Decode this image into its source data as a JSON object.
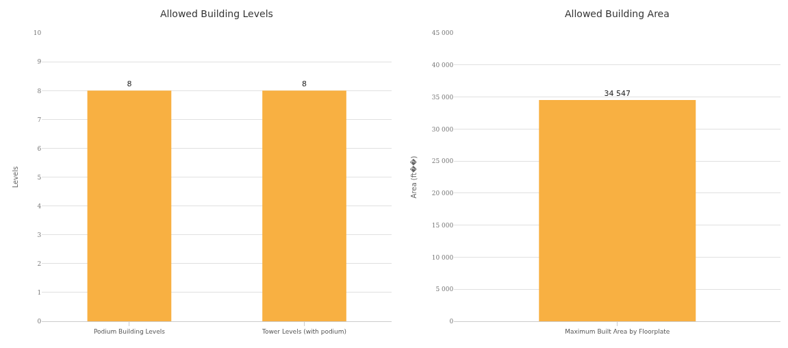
{
  "chart_data": [
    {
      "type": "bar",
      "title": "Allowed Building Levels",
      "ylabel": "Levels",
      "categories": [
        "Podium Building Levels",
        "Tower Levels (with podium)"
      ],
      "values": [
        8,
        8
      ],
      "color": "#f8b042",
      "ylim": [
        0,
        10
      ],
      "yticks": [
        0,
        1,
        2,
        3,
        4,
        5,
        6,
        7,
        8,
        9,
        10
      ],
      "grid": "y",
      "data_labels": true
    },
    {
      "type": "bar",
      "title": "Allowed Building Area",
      "ylabel": "Area (ft��)",
      "categories": [
        "Maximum Built Area by Floorplate"
      ],
      "values": [
        34547
      ],
      "value_labels": [
        "34 547"
      ],
      "color": "#f8b042",
      "ylim": [
        0,
        45000
      ],
      "yticks": [
        {
          "value": 0,
          "label": "0"
        },
        {
          "value": 5000,
          "label": "5 000"
        },
        {
          "value": 10000,
          "label": "10 000"
        },
        {
          "value": 15000,
          "label": "15 000"
        },
        {
          "value": 20000,
          "label": "20 000"
        },
        {
          "value": 25000,
          "label": "25 000"
        },
        {
          "value": 30000,
          "label": "30 000"
        },
        {
          "value": 35000,
          "label": "35 000"
        },
        {
          "value": 40000,
          "label": "40 000"
        },
        {
          "value": 45000,
          "label": "45 000"
        }
      ],
      "grid": "y"
    }
  ]
}
